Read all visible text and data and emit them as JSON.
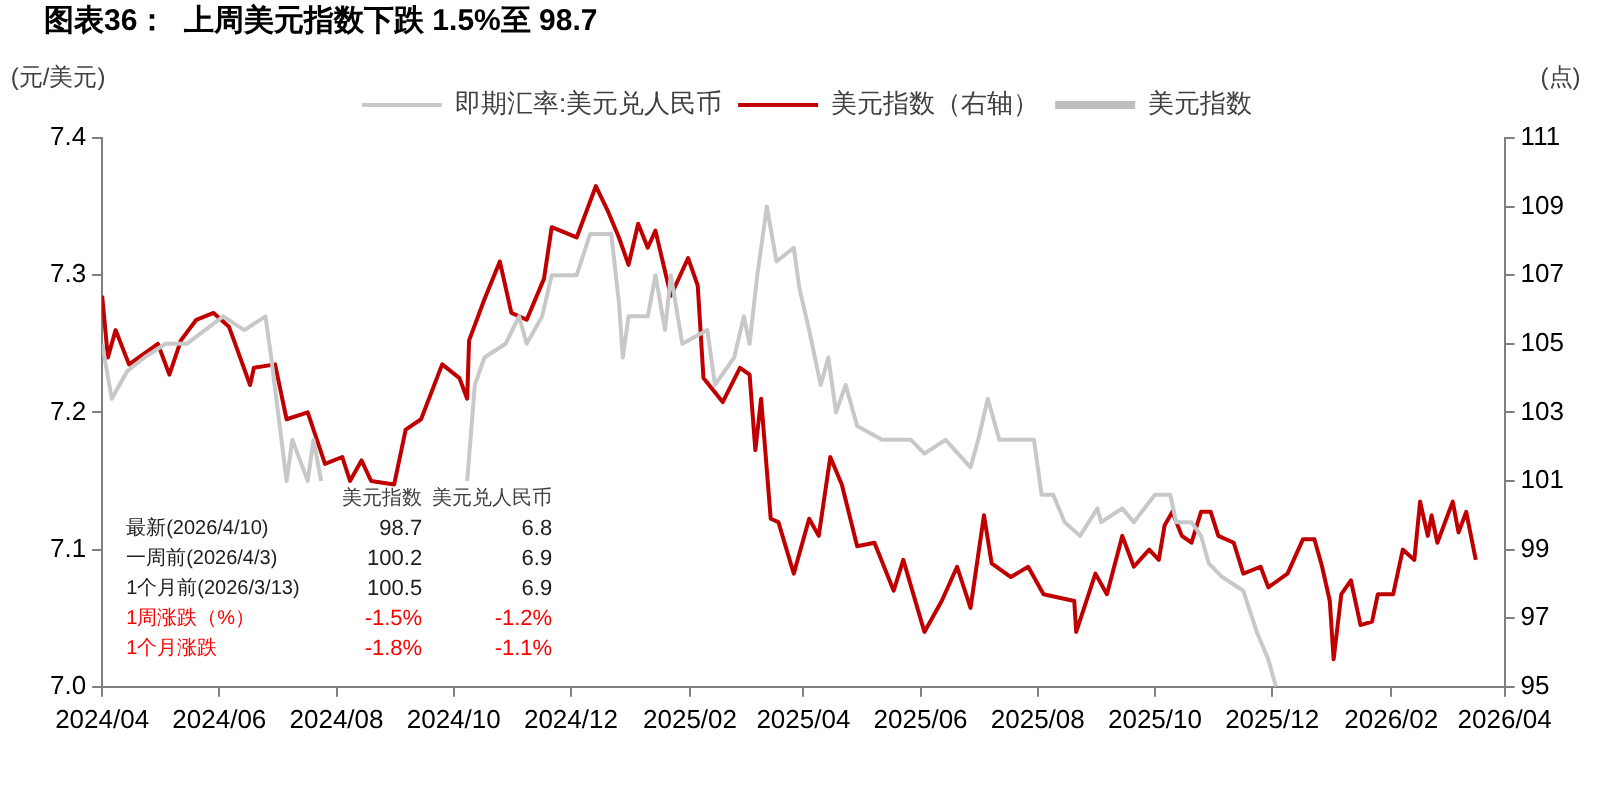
{
  "chart_data": {
    "type": "line",
    "title": "图表36：  上周美元指数下跌 1.5%至 98.7",
    "ylabel": "(元/美元)",
    "y2label": "(点)",
    "xlim": [
      "2024-04-01",
      "2026-04-01"
    ],
    "xticks": [
      {
        "value": "2024-04-01",
        "label": "2024/04"
      },
      {
        "value": "2024-06-01",
        "label": "2024/06"
      },
      {
        "value": "2024-08-01",
        "label": "2024/08"
      },
      {
        "value": "2024-10-01",
        "label": "2024/10"
      },
      {
        "value": "2024-12-01",
        "label": "2024/12"
      },
      {
        "value": "2025-02-01",
        "label": "2025/02"
      },
      {
        "value": "2025-04-01",
        "label": "2025/04"
      },
      {
        "value": "2025-06-01",
        "label": "2025/06"
      },
      {
        "value": "2025-08-01",
        "label": "2025/08"
      },
      {
        "value": "2025-10-01",
        "label": "2025/10"
      },
      {
        "value": "2025-12-01",
        "label": "2025/12"
      },
      {
        "value": "2026-02-01",
        "label": "2026/02"
      },
      {
        "value": "2026-04-01",
        "label": "2026/04"
      }
    ],
    "ylim": [
      7.0,
      7.4
    ],
    "yticks": [
      {
        "value": 7.0,
        "label": "7.0"
      },
      {
        "value": 7.1,
        "label": "7.1"
      },
      {
        "value": 7.2,
        "label": "7.2"
      },
      {
        "value": 7.3,
        "label": "7.3"
      },
      {
        "value": 7.4,
        "label": "7.4"
      }
    ],
    "y2lim": [
      95,
      111
    ],
    "y2ticks": [
      95,
      97,
      99,
      101,
      103,
      105,
      107,
      109,
      111
    ],
    "grid": false,
    "legend": "top",
    "marker": "none",
    "line_style": "solid",
    "series": [
      {
        "name": "即期汇率:美元兑人民币",
        "color": "#c8c8c8",
        "axis": "y",
        "x": [
          "2024-04-01",
          "2024-04-06",
          "2024-04-14",
          "2024-04-23",
          "2024-05-04",
          "2024-05-15",
          "2024-06-03",
          "2024-06-14",
          "2024-06-25",
          "2024-06-28",
          "2024-07-06",
          "2024-07-09",
          "2024-07-17",
          "2024-07-20",
          "2024-07-24",
          "2024-08-20",
          "2024-10-08",
          "2024-10-12",
          "2024-10-17",
          "2024-10-28",
          "2024-11-04",
          "2024-11-08",
          "2024-11-16",
          "2024-11-21",
          "2024-12-04",
          "2024-12-11",
          "2024-12-22",
          "2024-12-26",
          "2024-12-28",
          "2024-12-31",
          "2025-01-10",
          "2025-01-14",
          "2025-01-19",
          "2025-01-22",
          "2025-01-28",
          "2025-02-10",
          "2025-02-14",
          "2025-02-24",
          "2025-03-01",
          "2025-03-04",
          "2025-03-08",
          "2025-03-13",
          "2025-03-18",
          "2025-03-27",
          "2025-03-30",
          "2025-04-04",
          "2025-04-10",
          "2025-04-14",
          "2025-04-18",
          "2025-04-23",
          "2025-04-29",
          "2025-05-12",
          "2025-05-27",
          "2025-06-03",
          "2025-06-14",
          "2025-06-27",
          "2025-07-01",
          "2025-07-06",
          "2025-07-12",
          "2025-07-24",
          "2025-07-30",
          "2025-08-03",
          "2025-08-09",
          "2025-08-15",
          "2025-08-23",
          "2025-09-01",
          "2025-09-03",
          "2025-09-14",
          "2025-09-20",
          "2025-10-01",
          "2025-10-09",
          "2025-10-12",
          "2025-10-20",
          "2025-10-25",
          "2025-10-29",
          "2025-11-05",
          "2025-11-16",
          "2025-11-23",
          "2025-11-29",
          "2025-12-03"
        ],
        "values": [
          7.25,
          7.21,
          7.23,
          7.24,
          7.25,
          7.25,
          7.27,
          7.26,
          7.27,
          7.24,
          7.15,
          7.18,
          7.15,
          7.18,
          7.15,
          null,
          7.15,
          7.22,
          7.24,
          7.25,
          7.27,
          7.25,
          7.27,
          7.3,
          7.3,
          7.33,
          7.33,
          7.28,
          7.24,
          7.27,
          7.27,
          7.3,
          7.26,
          7.3,
          7.25,
          7.26,
          7.22,
          7.24,
          7.27,
          7.25,
          7.3,
          7.35,
          7.31,
          7.32,
          7.29,
          7.26,
          7.22,
          7.24,
          7.2,
          7.22,
          7.19,
          7.18,
          7.18,
          7.17,
          7.18,
          7.16,
          7.18,
          7.21,
          7.18,
          7.18,
          7.18,
          7.14,
          7.14,
          7.12,
          7.11,
          7.13,
          7.12,
          7.13,
          7.12,
          7.14,
          7.14,
          7.12,
          7.12,
          7.11,
          7.09,
          7.08,
          7.07,
          7.04,
          7.02,
          7.0
        ]
      },
      {
        "name": "美元指数（右轴）",
        "color": "#c00000",
        "axis": "y2",
        "x": [
          "2024-04-01",
          "2024-04-04",
          "2024-04-08",
          "2024-04-15",
          "2024-04-30",
          "2024-05-06",
          "2024-05-12",
          "2024-05-20",
          "2024-05-29",
          "2024-06-06",
          "2024-06-17",
          "2024-06-19",
          "2024-06-30",
          "2024-07-06",
          "2024-07-17",
          "2024-07-26",
          "2024-08-04",
          "2024-08-08",
          "2024-08-14",
          "2024-08-19",
          "2024-08-31",
          "2024-09-06",
          "2024-09-14",
          "2024-09-25",
          "2024-10-04",
          "2024-10-08",
          "2024-10-09",
          "2024-10-17",
          "2024-10-25",
          "2024-10-31",
          "2024-11-08",
          "2024-11-17",
          "2024-11-21",
          "2024-12-04",
          "2024-12-14",
          "2024-12-20",
          "2024-12-26",
          "2024-12-31",
          "2025-01-05",
          "2025-01-10",
          "2025-01-14",
          "2025-01-22",
          "2025-01-31",
          "2025-02-05",
          "2025-02-08",
          "2025-02-18",
          "2025-02-27",
          "2025-03-04",
          "2025-03-07",
          "2025-03-10",
          "2025-03-15",
          "2025-03-19",
          "2025-03-27",
          "2025-04-04",
          "2025-04-09",
          "2025-04-15",
          "2025-04-21",
          "2025-04-29",
          "2025-05-08",
          "2025-05-18",
          "2025-05-23",
          "2025-06-03",
          "2025-06-12",
          "2025-06-20",
          "2025-06-27",
          "2025-07-04",
          "2025-07-08",
          "2025-07-18",
          "2025-07-27",
          "2025-08-04",
          "2025-08-20",
          "2025-08-21",
          "2025-08-31",
          "2025-09-06",
          "2025-09-14",
          "2025-09-20",
          "2025-09-28",
          "2025-10-03",
          "2025-10-06",
          "2025-10-10",
          "2025-10-15",
          "2025-10-20",
          "2025-10-25",
          "2025-10-30",
          "2025-11-03",
          "2025-11-11",
          "2025-11-16",
          "2025-11-25",
          "2025-11-29",
          "2025-12-09",
          "2025-12-17",
          "2025-12-23",
          "2025-12-27",
          "2025-12-31",
          "2026-01-02",
          "2026-01-06",
          "2026-01-11",
          "2026-01-16",
          "2026-01-22",
          "2026-01-25",
          "2026-02-02",
          "2026-02-07",
          "2026-02-13",
          "2026-02-16",
          "2026-02-20",
          "2026-02-22",
          "2026-02-25",
          "2026-03-05",
          "2026-03-08",
          "2026-03-12",
          "2026-03-17"
        ],
        "values": [
          106.4,
          104.6,
          105.4,
          104.4,
          105.0,
          104.1,
          105.1,
          105.7,
          105.9,
          105.5,
          103.8,
          104.3,
          104.4,
          102.8,
          103.0,
          101.5,
          101.7,
          101.0,
          101.6,
          101.0,
          100.9,
          102.5,
          102.8,
          104.4,
          104.0,
          103.4,
          105.1,
          106.3,
          107.4,
          105.9,
          105.7,
          106.9,
          108.4,
          108.1,
          109.6,
          108.9,
          108.1,
          107.3,
          108.5,
          107.8,
          108.3,
          106.4,
          107.5,
          106.7,
          104.0,
          103.3,
          104.3,
          104.1,
          101.9,
          103.4,
          99.9,
          99.8,
          98.3,
          99.9,
          99.4,
          101.7,
          100.9,
          99.1,
          99.2,
          97.8,
          98.7,
          96.6,
          97.5,
          98.5,
          97.3,
          100.0,
          98.6,
          98.2,
          98.5,
          97.7,
          97.5,
          96.6,
          98.3,
          97.7,
          99.4,
          98.5,
          99.0,
          98.7,
          99.7,
          100.1,
          99.4,
          99.2,
          100.1,
          100.1,
          99.4,
          99.2,
          98.3,
          98.5,
          97.9,
          98.3,
          99.3,
          99.3,
          98.5,
          97.5,
          95.8,
          97.7,
          98.1,
          96.8,
          96.9,
          97.7,
          97.7,
          99.0,
          98.7,
          100.4,
          99.4,
          100.0,
          99.2,
          100.4,
          99.5,
          100.1,
          98.7
        ]
      },
      {
        "name": "美元指数",
        "color": "#bfbfbf",
        "axis": "y2"
      }
    ],
    "annotations": [
      "美元指数",
      "美元兑人民币",
      "最新(2026/4/10)",
      "98.7",
      "6.8",
      "一周前(2026/4/3)",
      "100.2",
      "6.9",
      "1个月前(2026/3/13)",
      "100.5",
      "6.9",
      "1周涨跌（%）",
      "-1.5%",
      "-1.2%",
      "1个月涨跌",
      "-1.8%",
      "-1.1%"
    ]
  }
}
